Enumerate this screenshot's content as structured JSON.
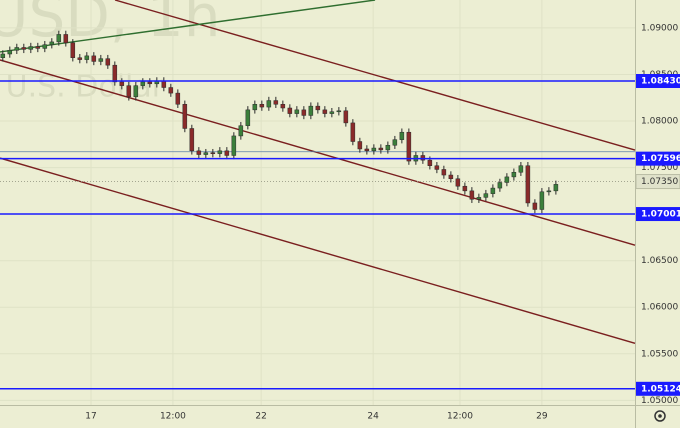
{
  "chart_data": {
    "type": "candlestick",
    "watermark": [
      "USD, 1h",
      "/ U.S. Dollar"
    ],
    "open": [
      1.0868,
      1.0872,
      1.0876,
      1.0879,
      1.0877,
      1.088,
      1.0878,
      1.0882,
      1.0885,
      1.0893,
      1.0884,
      1.0868,
      1.0866,
      1.087,
      1.0864,
      1.0867,
      1.086,
      1.0842,
      1.0838,
      1.0826,
      1.0838,
      1.0842,
      1.084,
      1.0843,
      1.0836,
      1.083,
      1.0818,
      1.0792,
      1.0768,
      1.0764,
      1.0766,
      1.0765,
      1.0768,
      1.0763,
      1.0784,
      1.0795,
      1.0812,
      1.0818,
      1.0815,
      1.0822,
      1.0818,
      1.0814,
      1.0808,
      1.0812,
      1.0806,
      1.0816,
      1.0812,
      1.0808,
      1.081,
      1.0811,
      1.0798,
      1.0778,
      1.077,
      1.0768,
      1.0771,
      1.0769,
      1.0774,
      1.078,
      1.0788,
      1.0757,
      1.0763,
      1.0758,
      1.0752,
      1.0748,
      1.0742,
      1.0738,
      1.073,
      1.0725,
      1.0716,
      1.0718,
      1.0722,
      1.0728,
      1.0734,
      1.074,
      1.0745,
      1.0752,
      1.0712,
      1.0705,
      1.0724,
      1.0725
    ],
    "high": [
      1.0876,
      1.088,
      1.0883,
      1.0883,
      1.0884,
      1.0884,
      1.0886,
      1.0889,
      1.0897,
      1.0897,
      1.0888,
      1.0872,
      1.0874,
      1.0874,
      1.0871,
      1.0871,
      1.0864,
      1.0846,
      1.0842,
      1.0842,
      1.0846,
      1.0846,
      1.0847,
      1.0847,
      1.084,
      1.0834,
      1.0822,
      1.0796,
      1.0772,
      1.077,
      1.077,
      1.0772,
      1.0772,
      1.0788,
      1.0799,
      1.0816,
      1.0822,
      1.0822,
      1.0826,
      1.0826,
      1.0822,
      1.0818,
      1.0816,
      1.0816,
      1.082,
      1.082,
      1.0816,
      1.0814,
      1.0815,
      1.0815,
      1.0802,
      1.0782,
      1.0774,
      1.0775,
      1.0775,
      1.0778,
      1.0784,
      1.0792,
      1.0792,
      1.0767,
      1.0767,
      1.0762,
      1.0756,
      1.0752,
      1.0746,
      1.0742,
      1.0734,
      1.0729,
      1.0722,
      1.0726,
      1.0732,
      1.0738,
      1.0744,
      1.0749,
      1.0756,
      1.0756,
      1.0716,
      1.0728,
      1.0729,
      1.0736
    ],
    "low": [
      1.0864,
      1.0868,
      1.0872,
      1.0873,
      1.0873,
      1.0874,
      1.0874,
      1.0878,
      1.0881,
      1.088,
      1.0864,
      1.0862,
      1.0862,
      1.086,
      1.086,
      1.0856,
      1.0838,
      1.0834,
      1.0822,
      1.0822,
      1.0834,
      1.0836,
      1.0836,
      1.0832,
      1.0826,
      1.0814,
      1.0788,
      1.0764,
      1.076,
      1.076,
      1.0761,
      1.0761,
      1.0759,
      1.0759,
      1.078,
      1.0791,
      1.0808,
      1.0811,
      1.0811,
      1.0814,
      1.081,
      1.0804,
      1.0804,
      1.0802,
      1.0802,
      1.0808,
      1.0804,
      1.0804,
      1.0806,
      1.0794,
      1.0774,
      1.0766,
      1.0764,
      1.0764,
      1.0765,
      1.0765,
      1.077,
      1.0776,
      1.0753,
      1.0753,
      1.0754,
      1.0748,
      1.0744,
      1.0738,
      1.0734,
      1.0726,
      1.0721,
      1.0712,
      1.0712,
      1.0714,
      1.0718,
      1.0724,
      1.073,
      1.0736,
      1.0741,
      1.0708,
      1.0701,
      1.0701,
      1.072,
      1.0721
    ],
    "close": [
      1.0872,
      1.0876,
      1.0879,
      1.0877,
      1.088,
      1.0878,
      1.0882,
      1.0885,
      1.0893,
      1.0884,
      1.0868,
      1.0866,
      1.087,
      1.0864,
      1.0867,
      1.086,
      1.0842,
      1.0838,
      1.0826,
      1.0838,
      1.0842,
      1.084,
      1.0843,
      1.0836,
      1.083,
      1.0818,
      1.0792,
      1.0768,
      1.0764,
      1.0766,
      1.0765,
      1.0768,
      1.0763,
      1.0784,
      1.0795,
      1.0812,
      1.0818,
      1.0815,
      1.0822,
      1.0818,
      1.0814,
      1.0808,
      1.0812,
      1.0806,
      1.0816,
      1.0812,
      1.0808,
      1.081,
      1.0811,
      1.0798,
      1.0778,
      1.077,
      1.0768,
      1.0771,
      1.0769,
      1.0774,
      1.078,
      1.0788,
      1.0757,
      1.0763,
      1.0758,
      1.0752,
      1.0748,
      1.0742,
      1.0738,
      1.073,
      1.0725,
      1.0716,
      1.0718,
      1.0722,
      1.0728,
      1.0734,
      1.074,
      1.0745,
      1.0752,
      1.0712,
      1.0705,
      1.0724,
      1.0725,
      1.0732
    ],
    "up_color": "#3b7f3b",
    "down_color": "#8a2a2a",
    "xlim": [
      -0.4,
      90.3
    ],
    "xticks": [
      {
        "value": 12.6,
        "label": "17"
      },
      {
        "value": 24.3,
        "label": "12:00"
      },
      {
        "value": 36.9,
        "label": "22"
      },
      {
        "value": 52.9,
        "label": "24"
      },
      {
        "value": 65.3,
        "label": "12:00"
      },
      {
        "value": 77.0,
        "label": "29"
      }
    ],
    "ylim": [
      1.0495,
      1.093
    ],
    "yticks": [
      {
        "value": 1.09,
        "label": "1.09000"
      },
      {
        "value": 1.085,
        "label": "1.08500"
      },
      {
        "value": 1.08,
        "label": "1.08000"
      },
      {
        "value": 1.075,
        "label": "1.07500"
      },
      {
        "value": 1.065,
        "label": "1.06500"
      },
      {
        "value": 1.06,
        "label": "1.06000"
      },
      {
        "value": 1.055,
        "label": "1.05500"
      },
      {
        "value": 1.05,
        "label": "1.05000"
      }
    ],
    "grid": true,
    "levels": [
      {
        "value": 1.0843,
        "label": "1.08430"
      },
      {
        "value": 1.07596,
        "label": "1.07596"
      },
      {
        "value": 1.07001,
        "label": "1.07001"
      },
      {
        "value": 1.05124,
        "label": "1.05124"
      }
    ],
    "level_color": "#1a1aff",
    "thin_level": 1.0767,
    "current": {
      "value": 1.0735,
      "label": "1.07350"
    },
    "trendlines": [
      {
        "color": "#7a1f1f",
        "x": [
          16.03,
          90.3
        ],
        "y": [
          1.093,
          1.07688
        ]
      },
      {
        "color": "#7a1f1f",
        "x": [
          -0.4,
          90.3
        ],
        "y": [
          1.08656,
          1.06667
        ]
      },
      {
        "color": "#7a1f1f",
        "x": [
          -0.4,
          90.3
        ],
        "y": [
          1.07602,
          1.05613
        ]
      },
      {
        "color": "#2f6e2f",
        "x": [
          -0.4,
          53.17
        ],
        "y": [
          1.08742,
          1.093
        ]
      }
    ]
  }
}
